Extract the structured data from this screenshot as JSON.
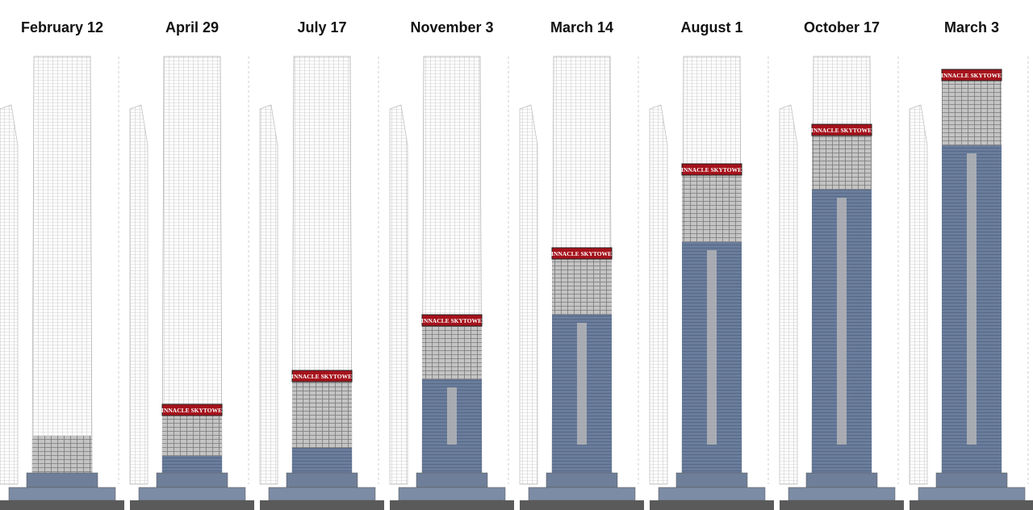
{
  "panels": [
    {
      "date": "February 12"
    },
    {
      "date": "April 29",
      "sign": "PINNACLE SKYTOWER"
    },
    {
      "date": "July 17",
      "sign": "PINNACLE SKYTOWER"
    },
    {
      "date": "November 3",
      "sign": "PINNACLE SKYTOWER"
    },
    {
      "date": "March 14",
      "sign": "PINNACLE SKYTOWER"
    },
    {
      "date": "August 1",
      "sign": "PINNACLE SKYTOWER"
    },
    {
      "date": "October 17",
      "sign": "PINNACLE SKYTOWER"
    },
    {
      "date": "March 3",
      "sign": "PINNACLE SKYTOWER"
    }
  ]
}
